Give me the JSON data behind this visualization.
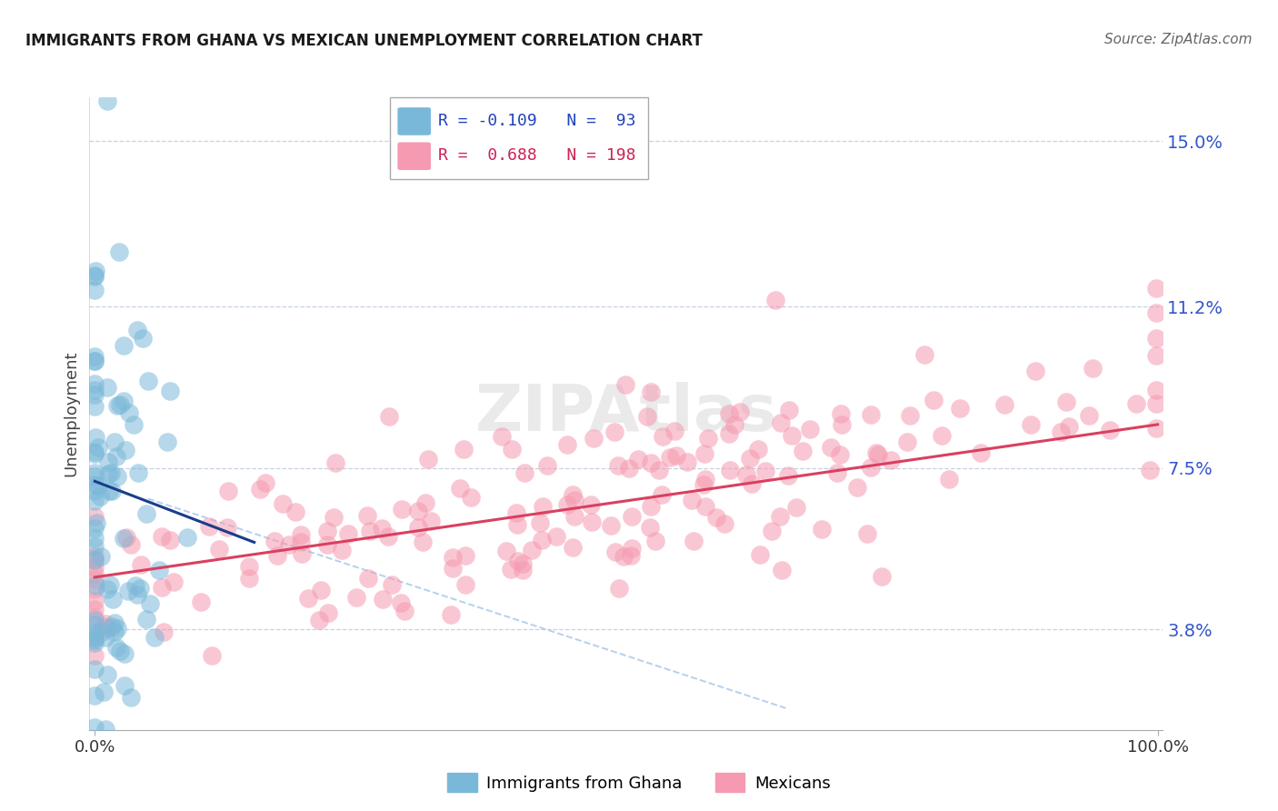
{
  "title": "IMMIGRANTS FROM GHANA VS MEXICAN UNEMPLOYMENT CORRELATION CHART",
  "source_text": "Source: ZipAtlas.com",
  "ylabel": "Unemployment",
  "x_min": 0.0,
  "x_max": 100.0,
  "y_min": 1.5,
  "y_max": 16.0,
  "y_ticks": [
    3.8,
    7.5,
    11.2,
    15.0
  ],
  "x_tick_labels": [
    "0.0%",
    "100.0%"
  ],
  "y_tick_labels": [
    "3.8%",
    "7.5%",
    "11.2%",
    "15.0%"
  ],
  "blue_color": "#7ab8d9",
  "pink_color": "#f59ab0",
  "blue_line_color": "#1a3e8a",
  "pink_line_color": "#d94060",
  "dashed_line_color": "#aaccee",
  "background_color": "#ffffff",
  "title_fontsize": 12,
  "watermark_text": "ZIPAtlas",
  "ghana_seed": 12,
  "mexico_seed": 55,
  "ghana_n": 93,
  "mexico_n": 198,
  "ghana_R": -0.109,
  "mexico_R": 0.688,
  "ghana_x_mean": 1.5,
  "ghana_x_std": 2.5,
  "ghana_y_mean": 6.8,
  "ghana_y_std": 3.0,
  "mexico_x_mean": 45.0,
  "mexico_x_std": 28.0,
  "mexico_y_mean": 6.8,
  "mexico_y_std": 1.6
}
